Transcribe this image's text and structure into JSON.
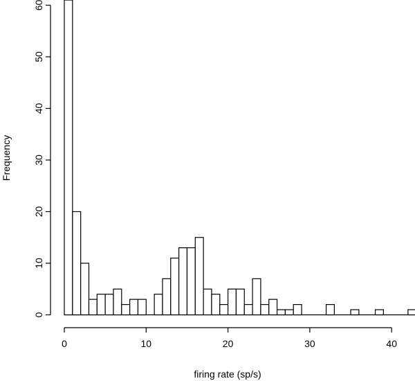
{
  "chart_data": {
    "type": "bar",
    "subtype": "histogram",
    "title": "",
    "xlabel": "firing rate (sp/s)",
    "ylabel": "Frequency",
    "bin_width": 1,
    "bin_start": 0,
    "values": [
      61,
      20,
      10,
      3,
      4,
      4,
      5,
      2,
      3,
      3,
      0,
      4,
      7,
      11,
      13,
      13,
      15,
      5,
      4,
      2,
      5,
      5,
      2,
      7,
      2,
      3,
      1,
      1,
      2,
      0,
      0,
      0,
      2,
      0,
      0,
      1,
      0,
      0,
      1,
      0,
      0,
      0,
      1
    ],
    "xticks": [
      "0",
      "10",
      "20",
      "30",
      "40"
    ],
    "yticks": [
      "0",
      "10",
      "20",
      "30",
      "40",
      "50",
      "60"
    ],
    "xlim": [
      0,
      43
    ],
    "ylim": [
      0,
      61
    ],
    "grid": false,
    "bar_fill": "#ffffff",
    "bar_stroke": "#000000"
  }
}
